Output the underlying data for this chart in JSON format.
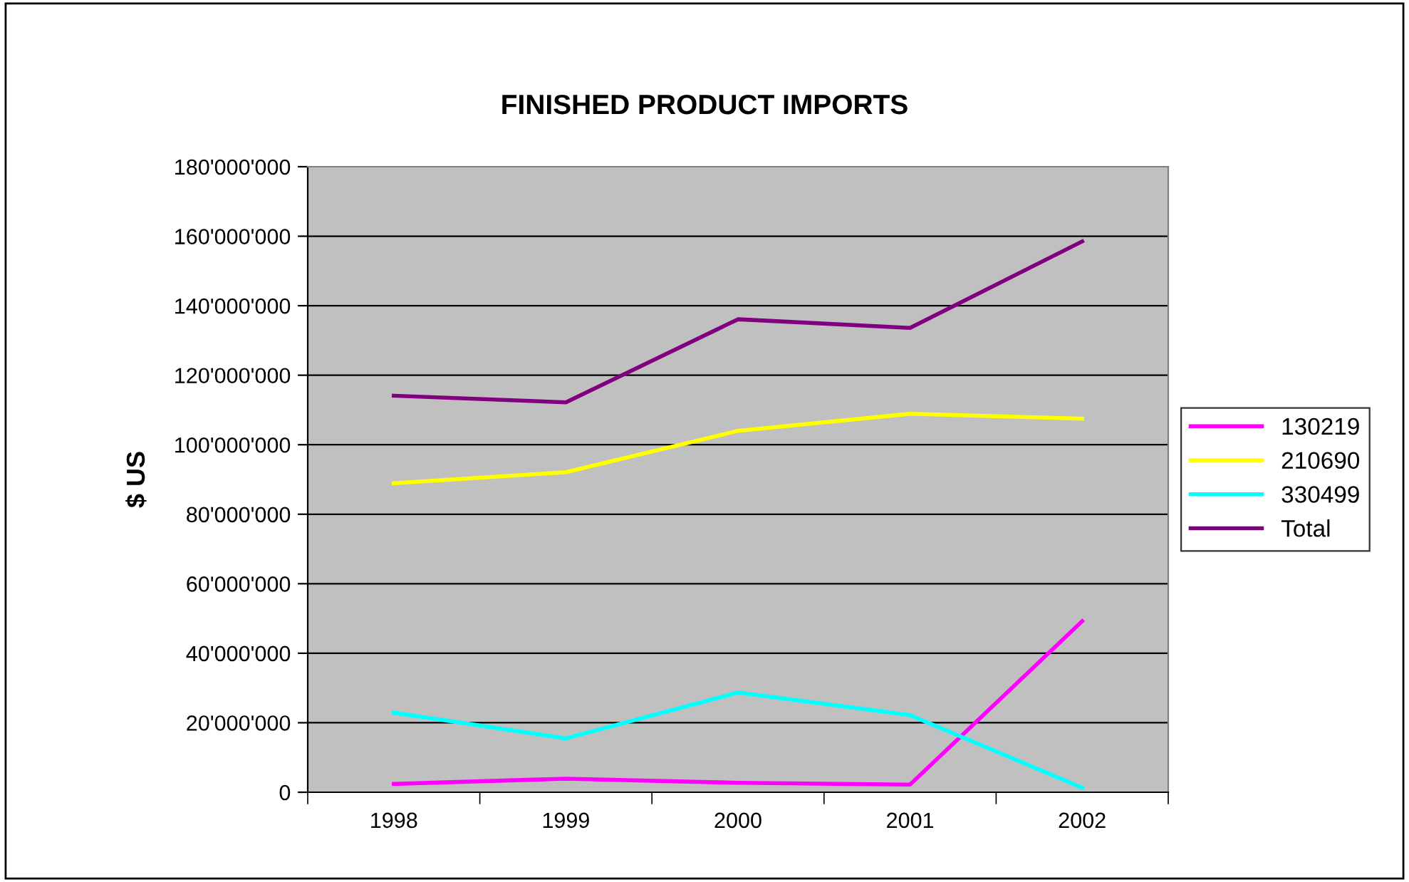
{
  "chart_data": {
    "type": "line",
    "title": "FINISHED PRODUCT IMPORTS",
    "ylabel": "$ US",
    "categories": [
      "1998",
      "1999",
      "2000",
      "2001",
      "2002"
    ],
    "series": [
      {
        "name": "130219",
        "color": "#ff00ff",
        "values": [
          2400000,
          3900000,
          2700000,
          2200000,
          49200000
        ]
      },
      {
        "name": "210690",
        "color": "#ffff00",
        "values": [
          88900000,
          92100000,
          104000000,
          108900000,
          107500000
        ]
      },
      {
        "name": "330499",
        "color": "#00ffff",
        "values": [
          22900000,
          15500000,
          28700000,
          22200000,
          1300000
        ]
      },
      {
        "name": "Total",
        "color": "#800080",
        "values": [
          114100000,
          112200000,
          136100000,
          133600000,
          158500000
        ]
      }
    ],
    "ylim": [
      0,
      180000000
    ],
    "yticks": [
      0,
      {
        "value": 20000000,
        "label": "20'000'000"
      },
      {
        "value": 40000000,
        "label": "40'000'000"
      },
      {
        "value": 60000000,
        "label": "60'000'000"
      },
      {
        "value": 80000000,
        "label": "80'000'000"
      },
      {
        "value": 100000000,
        "label": "100'000'000"
      },
      {
        "value": 120000000,
        "label": "120'000'000"
      },
      {
        "value": 140000000,
        "label": "140'000'000"
      },
      {
        "value": 160000000,
        "label": "160'000'000"
      },
      {
        "value": 180000000,
        "label": "180'000'000"
      }
    ],
    "grid": "y",
    "legend": "right",
    "marker": "none",
    "line_style": "solid"
  }
}
